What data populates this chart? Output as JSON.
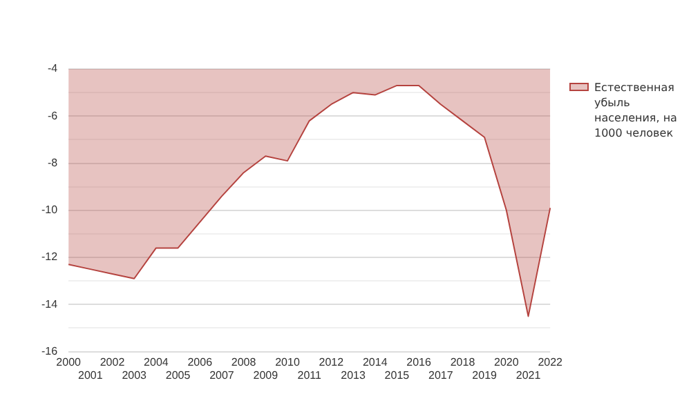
{
  "chart_data": {
    "type": "area",
    "categories": [
      "2000",
      "2001",
      "2002",
      "2003",
      "2004",
      "2005",
      "2006",
      "2007",
      "2008",
      "2009",
      "2010",
      "2011",
      "2012",
      "2013",
      "2014",
      "2015",
      "2016",
      "2017",
      "2018",
      "2019",
      "2020",
      "2021",
      "2022"
    ],
    "series": [
      {
        "name": "Естественная убыль населения, на 1000 человек",
        "color": "#b5433f",
        "values": [
          -12.3,
          -12.5,
          -12.7,
          -12.9,
          -11.6,
          -11.6,
          -10.5,
          -9.4,
          -8.4,
          -7.7,
          -7.9,
          -6.2,
          -5.5,
          -5.0,
          -5.1,
          -4.7,
          -4.7,
          -5.5,
          -6.2,
          -6.9,
          -10.0,
          -14.5,
          -9.9
        ]
      }
    ],
    "ylim": [
      -16,
      -4
    ],
    "yticks": [
      -16,
      {
        "value": -15,
        "label": null
      },
      -14,
      {
        "value": -13,
        "label": null
      },
      -12,
      {
        "value": -11,
        "label": null
      },
      -10,
      {
        "value": -9,
        "label": null
      },
      -8,
      {
        "value": -7,
        "label": null
      },
      -6,
      {
        "value": -5,
        "label": null
      },
      -4
    ],
    "grid": "y",
    "legend": "top right"
  }
}
